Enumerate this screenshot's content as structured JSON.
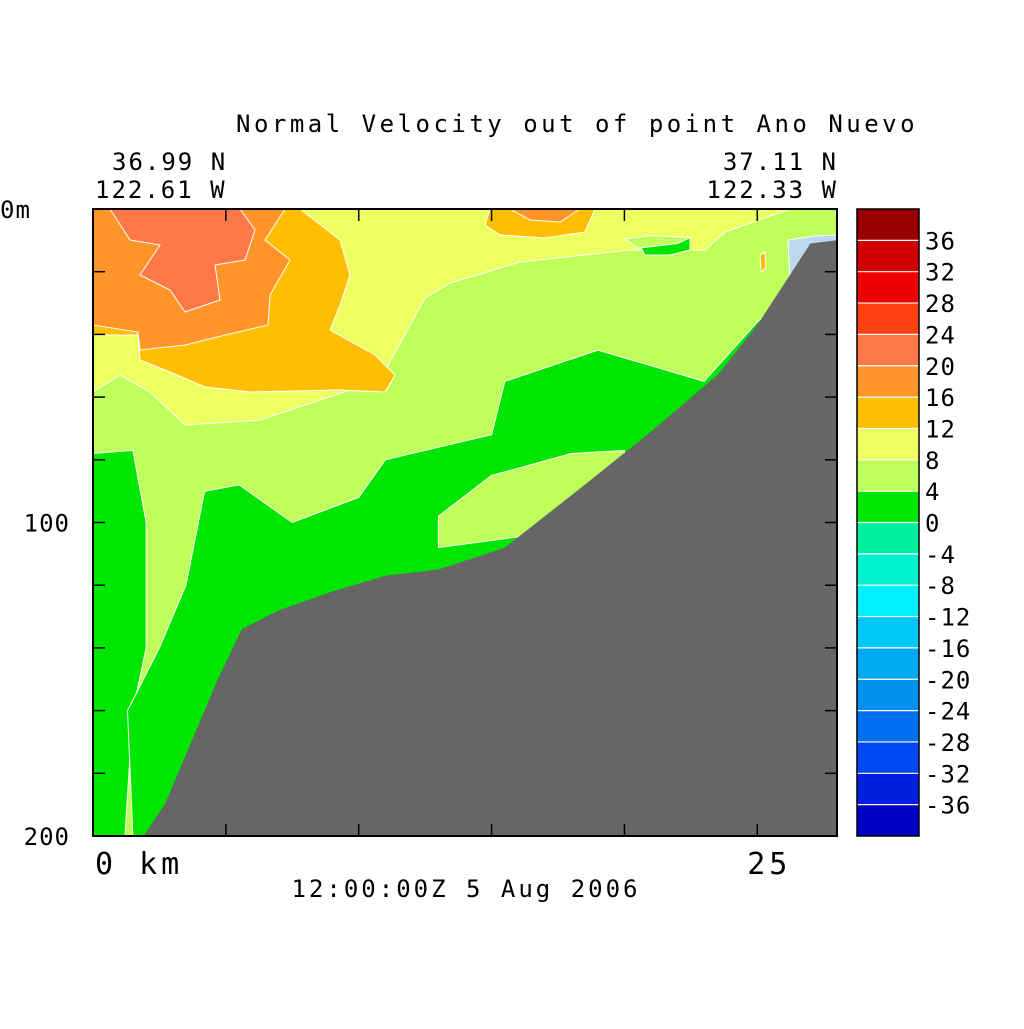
{
  "chart_data": {
    "type": "heatmap",
    "title": "Normal Velocity out of point Ano Nuevo",
    "corners": {
      "left_lat": "36.99 N",
      "left_lon": "122.61 W",
      "right_lat": "37.11 N",
      "right_lon": "122.33 W"
    },
    "timestamp": "12:00:00Z   5 Aug 2006",
    "x_axis": {
      "range_km": [
        0,
        28
      ],
      "tick_values_km": [
        0,
        5,
        10,
        15,
        20,
        25
      ],
      "labels": [
        {
          "value": 0,
          "text": "0 km"
        },
        {
          "value": 25,
          "text": "25"
        }
      ]
    },
    "y_axis": {
      "range_m": [
        0,
        200
      ],
      "inverted": true,
      "tick_values_m": [
        0,
        20,
        40,
        60,
        80,
        100,
        120,
        140,
        160,
        180,
        200
      ],
      "labels": [
        {
          "value": 0,
          "text": "0m"
        },
        {
          "value": 100,
          "text": "100"
        },
        {
          "value": 200,
          "text": "200"
        }
      ]
    },
    "colorbar": {
      "levels": [
        -40,
        -36,
        -32,
        -28,
        -24,
        -20,
        -16,
        -12,
        -8,
        -4,
        0,
        4,
        8,
        12,
        16,
        20,
        24,
        28,
        32,
        36,
        40
      ],
      "colors": [
        "#0000c0",
        "#0020e0",
        "#0048f0",
        "#0070f0",
        "#0090f0",
        "#00aaf0",
        "#00c8f8",
        "#00f0ff",
        "#00f0d0",
        "#00f0a0",
        "#00e600",
        "#bfff5a",
        "#eeff60",
        "#ffbf00",
        "#ff9428",
        "#ff7848",
        "#ff4010",
        "#ee0000",
        "#d00000",
        "#9a0000"
      ],
      "labels": [
        "-36",
        "-32",
        "-28",
        "-24",
        "-20",
        "-16",
        "-12",
        "-8",
        "-4",
        "0",
        "4",
        "8",
        "12",
        "16",
        "20",
        "24",
        "28",
        "32",
        "36"
      ]
    },
    "bathymetry_color": "#666666",
    "no_data_color": "#bcd8ee",
    "velocity_bands": [
      {
        "min": 0,
        "max": 4,
        "color": "#00e600",
        "outline_km_m": [
          [
            0,
            78
          ],
          [
            1.5,
            77
          ],
          [
            2,
            100
          ],
          [
            2,
            140
          ],
          [
            1.5,
            160
          ],
          [
            1.2,
            200
          ],
          [
            0,
            200
          ]
        ]
      },
      {
        "min": 0,
        "max": 4,
        "color": "#00e600",
        "outline_km_m": [
          [
            1.5,
            200
          ],
          [
            1.3,
            160
          ],
          [
            2.5,
            140
          ],
          [
            3.5,
            120
          ],
          [
            4.2,
            90
          ],
          [
            5.5,
            88
          ],
          [
            7.5,
            100
          ],
          [
            10,
            92
          ],
          [
            11,
            80
          ],
          [
            15,
            72
          ],
          [
            15.5,
            55
          ],
          [
            19,
            45
          ],
          [
            23,
            55
          ],
          [
            25,
            36
          ],
          [
            25.5,
            33
          ],
          [
            27,
            30
          ],
          [
            27,
            200
          ]
        ]
      },
      {
        "min": 4,
        "max": 8,
        "color": "#bfff5a",
        "outline_km_m": [
          [
            13,
            98
          ],
          [
            13,
            108
          ],
          [
            20,
            100
          ],
          [
            20,
            77
          ],
          [
            18,
            78
          ],
          [
            15,
            85
          ]
        ]
      },
      {
        "min": 4,
        "max": 8,
        "color": "#bfff5a",
        "outline_km_m": [
          [
            20.5,
            12.5
          ],
          [
            22,
            11
          ],
          [
            22.5,
            9
          ],
          [
            21,
            8.5
          ],
          [
            20,
            9.5
          ]
        ]
      }
    ],
    "seabed_km_m": [
      [
        1.9,
        200
      ],
      [
        2.7,
        190
      ],
      [
        4.7,
        150
      ],
      [
        5.6,
        134
      ],
      [
        7,
        128
      ],
      [
        9,
        122
      ],
      [
        11,
        117
      ],
      [
        13,
        115
      ],
      [
        15.5,
        108
      ],
      [
        18.5,
        88
      ],
      [
        21,
        71
      ],
      [
        23.5,
        53
      ],
      [
        25,
        37
      ],
      [
        26,
        24
      ],
      [
        27,
        11
      ],
      [
        28,
        10
      ],
      [
        28,
        200
      ]
    ]
  }
}
